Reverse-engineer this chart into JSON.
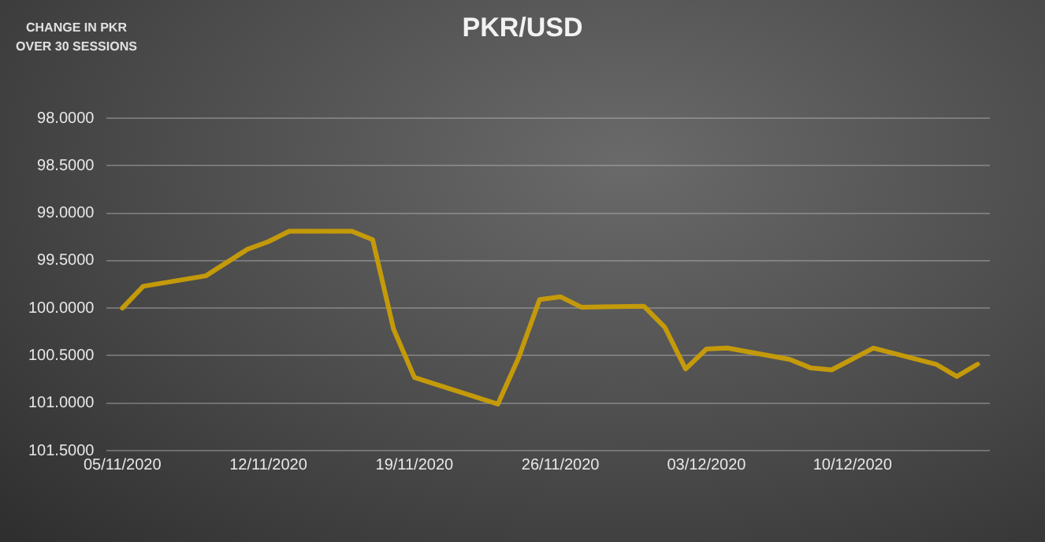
{
  "chart_data": {
    "type": "line",
    "title": "PKR/USD",
    "ylabel": "CHANGE IN PKR OVER 30 SESSIONS",
    "x": [
      "2020-11-05",
      "2020-11-06",
      "2020-11-09",
      "2020-11-11",
      "2020-11-12",
      "2020-11-13",
      "2020-11-16",
      "2020-11-17",
      "2020-11-18",
      "2020-11-19",
      "2020-11-20",
      "2020-11-23",
      "2020-11-24",
      "2020-11-25",
      "2020-11-26",
      "2020-11-27",
      "2020-11-30",
      "2020-12-01",
      "2020-12-02",
      "2020-12-03",
      "2020-12-04",
      "2020-12-07",
      "2020-12-08",
      "2020-12-09",
      "2020-12-11",
      "2020-12-14",
      "2020-12-15",
      "2020-12-16"
    ],
    "series": [
      {
        "color": "#c49a0a",
        "values": [
          100.0,
          99.77,
          99.66,
          99.38,
          99.3,
          99.19,
          99.19,
          99.28,
          100.22,
          100.73,
          100.8,
          101.01,
          100.52,
          99.91,
          99.88,
          99.99,
          99.98,
          100.2,
          100.64,
          100.43,
          100.42,
          100.54,
          100.63,
          100.65,
          100.42,
          100.59,
          100.72,
          100.59
        ]
      }
    ],
    "xlim": [
      "2020-11-04T06:00",
      "2020-12-16T14:00"
    ],
    "xticks": [
      {
        "value": "2020-11-05",
        "label": "05/11/2020"
      },
      {
        "value": "2020-11-12",
        "label": "12/11/2020"
      },
      {
        "value": "2020-11-19",
        "label": "19/11/2020"
      },
      {
        "value": "2020-11-26",
        "label": "26/11/2020"
      },
      {
        "value": "2020-12-03",
        "label": "03/12/2020"
      },
      {
        "value": "2020-12-10",
        "label": "10/12/2020"
      }
    ],
    "ylim": [
      101.5,
      98
    ],
    "yticks": [
      {
        "value": 98,
        "label": "98.0000"
      },
      {
        "value": 98.5,
        "label": "98.5000"
      },
      {
        "value": 99,
        "label": "99.0000"
      },
      {
        "value": 99.5,
        "label": "99.5000"
      },
      {
        "value": 100,
        "label": "100.0000"
      },
      {
        "value": 100.5,
        "label": "100.5000"
      },
      {
        "value": 101,
        "label": "101.0000"
      },
      {
        "value": 101.5,
        "label": "101.5000"
      }
    ],
    "grid": "y",
    "legend": false,
    "marker": "none",
    "line_style": "solid"
  }
}
